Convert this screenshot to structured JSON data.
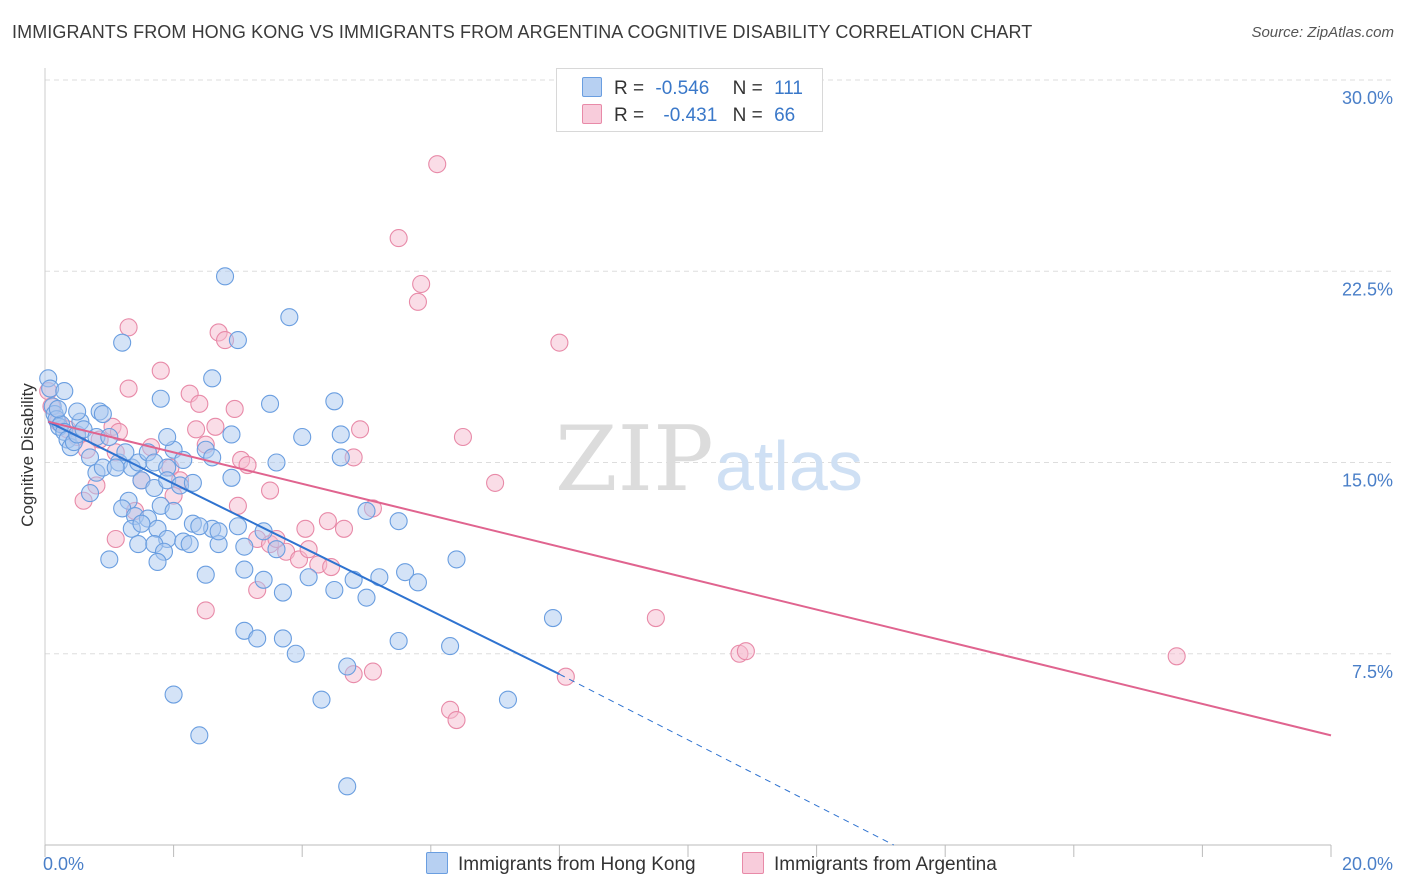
{
  "title": "IMMIGRANTS FROM HONG KONG VS IMMIGRANTS FROM ARGENTINA COGNITIVE DISABILITY CORRELATION CHART",
  "source": "Source: ZipAtlas.com",
  "watermark": {
    "zip": "ZIP",
    "atlas": "atlas"
  },
  "legend": {
    "r_label": "R =",
    "n_label": "N =",
    "rows": [
      {
        "r": "-0.546",
        "n": "111"
      },
      {
        "r": "-0.431",
        "n": "66"
      }
    ]
  },
  "colors": {
    "hong_kong_fill": "#a9c8f0",
    "hong_kong_stroke": "#6a9ee0",
    "hong_kong_line": "#2f73d0",
    "argentina_fill": "#f6bcd0",
    "argentina_stroke": "#e88aa8",
    "argentina_line": "#e0648f",
    "tick_text": "#4a7fc8",
    "grid": "#dddddd"
  },
  "chart_data": {
    "type": "scatter",
    "title": "IMMIGRANTS FROM HONG KONG VS IMMIGRANTS FROM ARGENTINA COGNITIVE DISABILITY CORRELATION CHART",
    "xlabel": "",
    "ylabel": "Cognitive Disability",
    "xlim": [
      0,
      20
    ],
    "ylim": [
      0,
      30
    ],
    "x_tick_labels": [
      {
        "value": 0,
        "label": "0.0%"
      },
      {
        "value": 20,
        "label": "20.0%"
      }
    ],
    "y_tick_labels": [
      {
        "value": 7.5,
        "label": "7.5%"
      },
      {
        "value": 15,
        "label": "15.0%"
      },
      {
        "value": 22.5,
        "label": "22.5%"
      },
      {
        "value": 30,
        "label": "30.0%"
      }
    ],
    "grid": true,
    "legend_position": "top-center",
    "series": [
      {
        "name": "Immigrants from Hong Kong",
        "points": [
          [
            0.05,
            18.3
          ],
          [
            0.08,
            17.9
          ],
          [
            0.12,
            17.2
          ],
          [
            0.15,
            16.9
          ],
          [
            0.18,
            16.7
          ],
          [
            0.22,
            16.4
          ],
          [
            0.25,
            16.5
          ],
          [
            0.3,
            16.2
          ],
          [
            0.35,
            15.9
          ],
          [
            0.4,
            15.6
          ],
          [
            0.45,
            15.8
          ],
          [
            0.5,
            16.1
          ],
          [
            0.55,
            16.6
          ],
          [
            0.6,
            16.3
          ],
          [
            0.3,
            17.8
          ],
          [
            0.5,
            17.0
          ],
          [
            0.7,
            15.2
          ],
          [
            0.8,
            16.0
          ],
          [
            0.85,
            17.0
          ],
          [
            0.9,
            16.9
          ],
          [
            1.0,
            16.0
          ],
          [
            0.2,
            17.1
          ],
          [
            1.15,
            15.0
          ],
          [
            1.25,
            15.4
          ],
          [
            1.35,
            14.8
          ],
          [
            1.45,
            15.0
          ],
          [
            1.6,
            15.4
          ],
          [
            1.7,
            15.0
          ],
          [
            1.9,
            14.8
          ],
          [
            2.0,
            15.5
          ],
          [
            2.15,
            15.1
          ],
          [
            0.8,
            14.6
          ],
          [
            0.9,
            14.8
          ],
          [
            1.1,
            14.8
          ],
          [
            0.7,
            13.8
          ],
          [
            1.3,
            13.5
          ],
          [
            1.5,
            14.3
          ],
          [
            1.7,
            14.0
          ],
          [
            1.9,
            14.3
          ],
          [
            2.1,
            14.1
          ],
          [
            2.3,
            14.2
          ],
          [
            2.5,
            15.5
          ],
          [
            2.6,
            15.2
          ],
          [
            1.2,
            13.2
          ],
          [
            1.4,
            12.9
          ],
          [
            1.6,
            12.8
          ],
          [
            1.8,
            13.3
          ],
          [
            2.0,
            13.1
          ],
          [
            2.3,
            12.6
          ],
          [
            2.6,
            12.4
          ],
          [
            2.9,
            14.4
          ],
          [
            1.35,
            12.4
          ],
          [
            1.5,
            12.6
          ],
          [
            1.75,
            12.4
          ],
          [
            1.9,
            12.0
          ],
          [
            2.15,
            11.9
          ],
          [
            2.4,
            12.5
          ],
          [
            2.7,
            11.8
          ],
          [
            3.1,
            11.7
          ],
          [
            1.45,
            11.8
          ],
          [
            1.7,
            11.8
          ],
          [
            1.85,
            11.5
          ],
          [
            2.25,
            11.8
          ],
          [
            2.7,
            12.3
          ],
          [
            3.0,
            12.5
          ],
          [
            3.4,
            12.3
          ],
          [
            3.6,
            11.6
          ],
          [
            1.0,
            11.2
          ],
          [
            1.75,
            11.1
          ],
          [
            2.5,
            10.6
          ],
          [
            3.1,
            10.8
          ],
          [
            3.4,
            10.4
          ],
          [
            3.7,
            9.9
          ],
          [
            4.1,
            10.5
          ],
          [
            4.5,
            10.0
          ],
          [
            4.8,
            10.4
          ],
          [
            5.2,
            10.5
          ],
          [
            5.6,
            10.7
          ],
          [
            5.0,
            9.7
          ],
          [
            5.5,
            8.0
          ],
          [
            6.3,
            7.8
          ],
          [
            3.1,
            8.4
          ],
          [
            3.3,
            8.1
          ],
          [
            3.7,
            8.1
          ],
          [
            3.9,
            7.5
          ],
          [
            4.7,
            7.0
          ],
          [
            2.0,
            5.9
          ],
          [
            4.3,
            5.7
          ],
          [
            7.2,
            5.7
          ],
          [
            2.4,
            4.3
          ],
          [
            4.7,
            2.3
          ],
          [
            4.6,
            16.1
          ],
          [
            4.5,
            17.4
          ],
          [
            3.5,
            17.3
          ],
          [
            3.0,
            19.8
          ],
          [
            2.6,
            18.3
          ],
          [
            1.8,
            17.5
          ],
          [
            2.8,
            22.3
          ],
          [
            3.8,
            20.7
          ],
          [
            1.2,
            19.7
          ],
          [
            1.9,
            16.0
          ],
          [
            2.9,
            16.1
          ],
          [
            3.6,
            15.0
          ],
          [
            4.0,
            16.0
          ],
          [
            4.6,
            15.2
          ],
          [
            5.0,
            13.1
          ],
          [
            5.5,
            12.7
          ],
          [
            6.4,
            11.2
          ],
          [
            5.8,
            10.3
          ],
          [
            7.9,
            8.9
          ]
        ]
      },
      {
        "name": "Immigrants from Argentina",
        "points": [
          [
            0.05,
            17.8
          ],
          [
            0.1,
            17.2
          ],
          [
            0.2,
            16.6
          ],
          [
            0.35,
            16.3
          ],
          [
            0.5,
            16.0
          ],
          [
            0.65,
            15.5
          ],
          [
            0.85,
            15.9
          ],
          [
            1.05,
            16.4
          ],
          [
            1.15,
            16.2
          ],
          [
            1.3,
            17.9
          ],
          [
            1.5,
            14.3
          ],
          [
            1.65,
            15.6
          ],
          [
            1.8,
            18.6
          ],
          [
            1.95,
            14.8
          ],
          [
            2.1,
            14.3
          ],
          [
            2.25,
            17.7
          ],
          [
            2.35,
            16.3
          ],
          [
            2.5,
            15.7
          ],
          [
            2.65,
            16.4
          ],
          [
            2.7,
            20.1
          ],
          [
            2.95,
            17.1
          ],
          [
            3.05,
            15.1
          ],
          [
            3.15,
            14.9
          ],
          [
            3.3,
            12.0
          ],
          [
            3.5,
            11.8
          ],
          [
            3.75,
            11.5
          ],
          [
            3.95,
            11.2
          ],
          [
            4.05,
            12.4
          ],
          [
            4.25,
            11.0
          ],
          [
            4.45,
            10.9
          ],
          [
            4.65,
            12.4
          ],
          [
            4.8,
            15.2
          ],
          [
            4.9,
            16.3
          ],
          [
            5.1,
            13.2
          ],
          [
            5.5,
            23.8
          ],
          [
            5.85,
            22.0
          ],
          [
            5.8,
            21.3
          ],
          [
            6.1,
            26.7
          ],
          [
            6.5,
            16.0
          ],
          [
            7.0,
            14.2
          ],
          [
            8.0,
            19.7
          ],
          [
            8.1,
            6.6
          ],
          [
            9.5,
            8.9
          ],
          [
            10.8,
            7.5
          ],
          [
            10.9,
            7.6
          ],
          [
            17.6,
            7.4
          ],
          [
            6.3,
            5.3
          ],
          [
            6.4,
            4.9
          ],
          [
            4.8,
            6.7
          ],
          [
            5.1,
            6.8
          ],
          [
            1.3,
            20.3
          ],
          [
            2.8,
            19.8
          ],
          [
            1.4,
            13.1
          ],
          [
            0.8,
            14.1
          ],
          [
            1.1,
            12.0
          ],
          [
            2.5,
            9.2
          ],
          [
            3.3,
            10.0
          ],
          [
            2.4,
            17.3
          ],
          [
            1.1,
            15.4
          ],
          [
            0.6,
            13.5
          ],
          [
            3.0,
            13.3
          ],
          [
            3.5,
            13.9
          ],
          [
            4.4,
            12.7
          ],
          [
            2.0,
            13.7
          ],
          [
            3.6,
            12.0
          ],
          [
            4.1,
            11.6
          ]
        ]
      }
    ],
    "trendlines": [
      {
        "series": "Immigrants from Hong Kong",
        "solid": [
          [
            0.05,
            16.6
          ],
          [
            8.0,
            6.7
          ]
        ],
        "dashed": [
          [
            8.0,
            6.7
          ],
          [
            13.2,
            0.0
          ]
        ]
      },
      {
        "series": "Immigrants from Argentina",
        "solid": [
          [
            0.05,
            16.6
          ],
          [
            20.0,
            4.3
          ]
        ]
      }
    ]
  }
}
